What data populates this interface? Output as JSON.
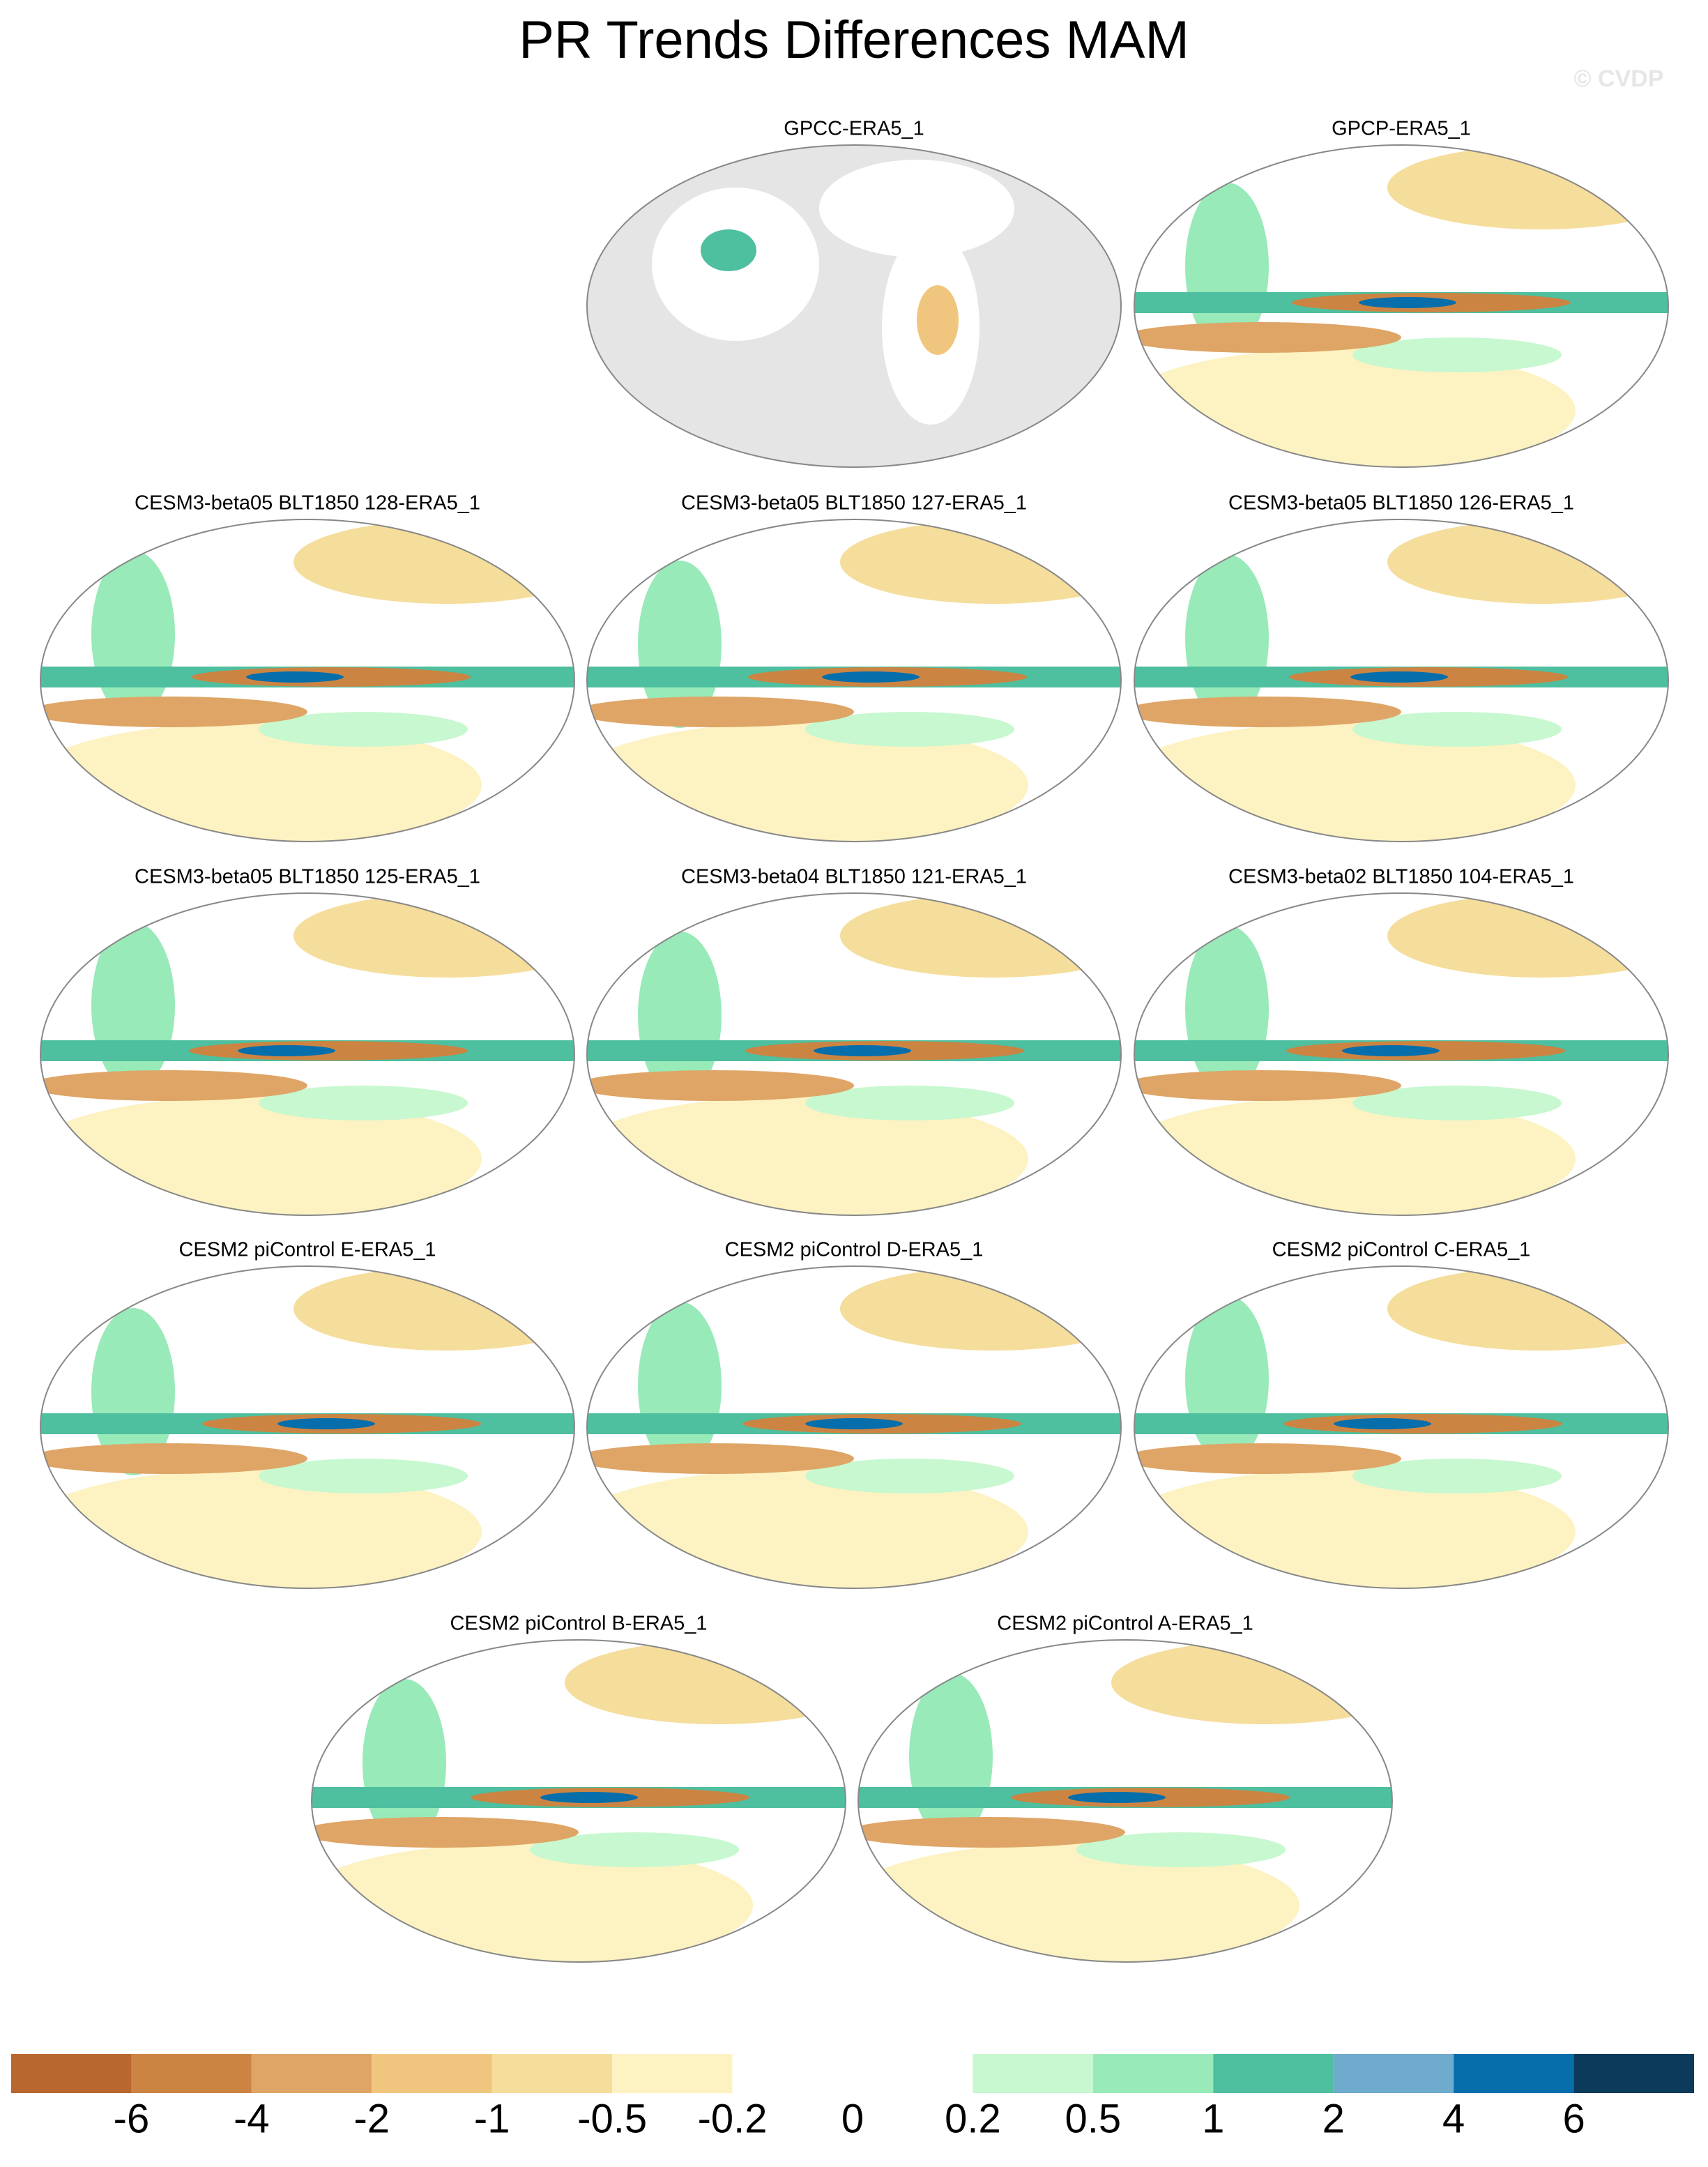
{
  "title": "PR Trends Differences MAM",
  "watermark": "© CVDP",
  "panels": [
    {
      "title": "GPCC-ERA5_1"
    },
    {
      "title": "GPCP-ERA5_1"
    },
    {
      "title": "CESM3-beta05 BLT1850 128-ERA5_1"
    },
    {
      "title": "CESM3-beta05 BLT1850 127-ERA5_1"
    },
    {
      "title": "CESM3-beta05 BLT1850 126-ERA5_1"
    },
    {
      "title": "CESM3-beta05 BLT1850 125-ERA5_1"
    },
    {
      "title": "CESM3-beta04 BLT1850 121-ERA5_1"
    },
    {
      "title": "CESM3-beta02 BLT1850 104-ERA5_1"
    },
    {
      "title": "CESM2 piControl E-ERA5_1"
    },
    {
      "title": "CESM2 piControl D-ERA5_1"
    },
    {
      "title": "CESM2 piControl C-ERA5_1"
    },
    {
      "title": "CESM2 piControl B-ERA5_1"
    },
    {
      "title": "CESM2 piControl A-ERA5_1"
    }
  ],
  "colorbar": {
    "levels": [
      -6,
      -4,
      -2,
      -1,
      -0.5,
      -0.2,
      0,
      0.2,
      0.5,
      1,
      2,
      4,
      6
    ],
    "colors": [
      "#b8672e",
      "#cc8442",
      "#dfa566",
      "#f0c67f",
      "#f5dd9b",
      "#fdf2c2",
      "#ffffff",
      "#ffffff",
      "#c7f8cf",
      "#98eab9",
      "#4ebf9f",
      "#6fabcc",
      "#066eab",
      "#0b3a5a"
    ]
  }
}
